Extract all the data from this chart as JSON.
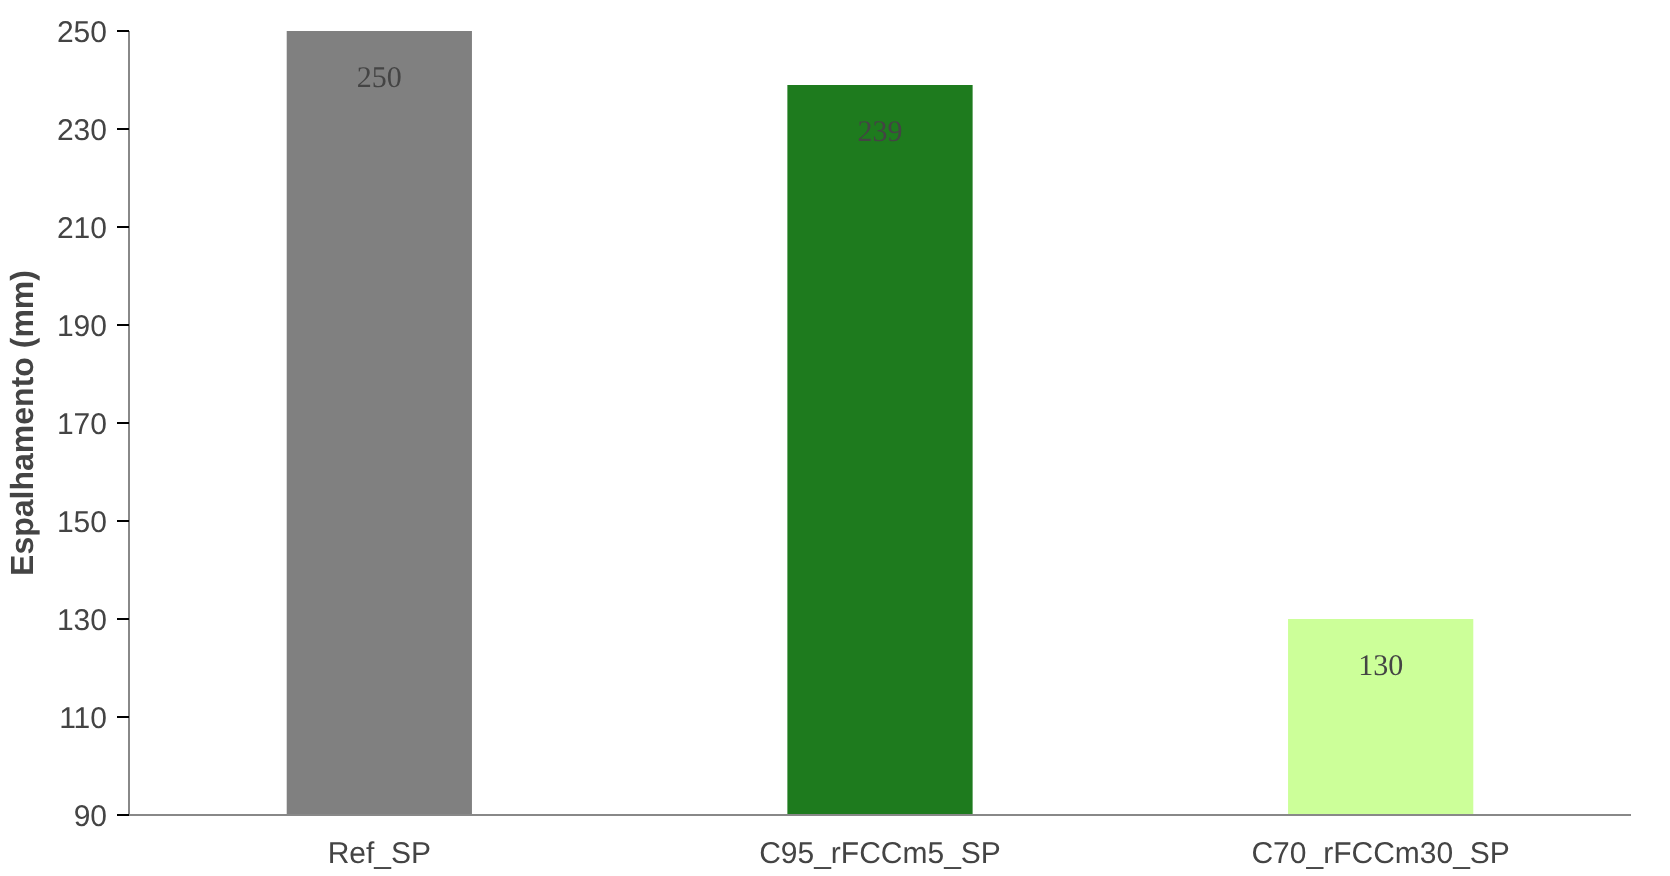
{
  "chart_data": {
    "type": "bar",
    "ylabel": "Espalhamento (mm)",
    "categories": [
      "Ref_SP",
      "C95_rFCCm5_SP",
      "C70_rFCCm30_SP"
    ],
    "values": [
      250,
      239,
      130
    ],
    "colors": [
      "#808080",
      "#1e7b1e",
      "#ccff99"
    ],
    "ylim": [
      90,
      250
    ],
    "yticks": [
      90,
      110,
      130,
      150,
      170,
      190,
      210,
      230,
      250
    ],
    "grid": false,
    "data_labels": true
  }
}
